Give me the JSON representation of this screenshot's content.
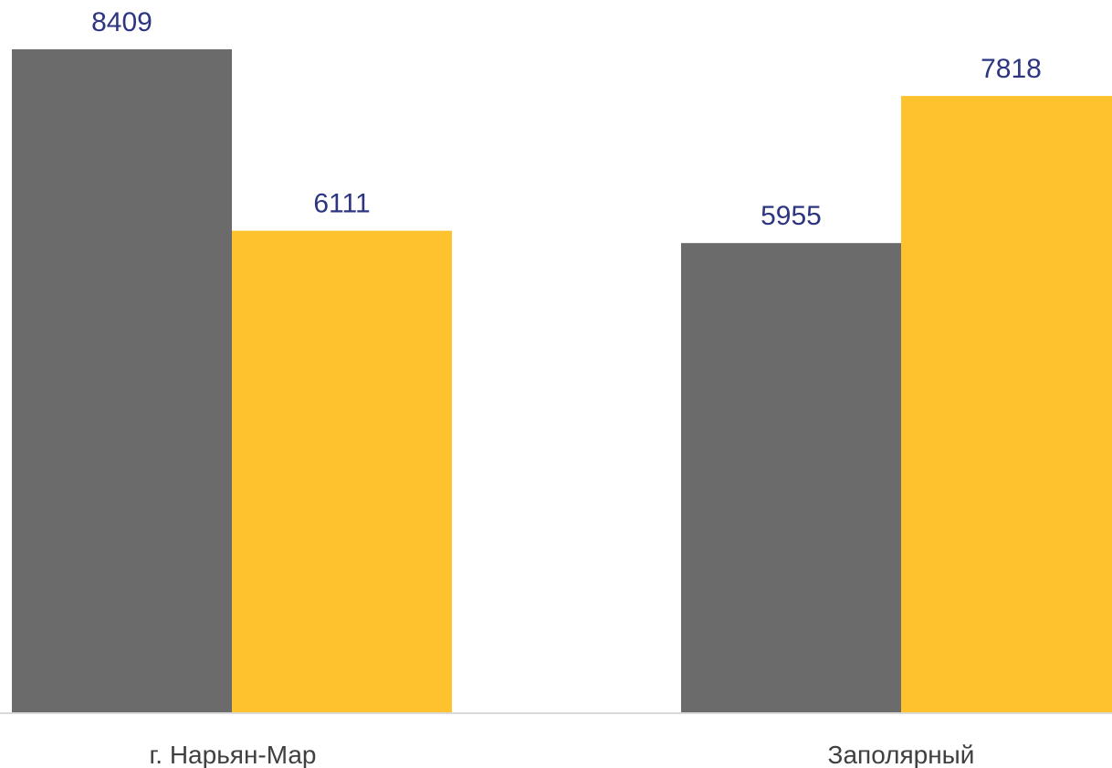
{
  "chart_data": {
    "type": "bar",
    "categories": [
      "г. Нарьян-Мар",
      "Заполярный"
    ],
    "series": [
      {
        "color": "#6b6b6b",
        "values": [
          8409,
          5955
        ]
      },
      {
        "color": "#fdc22d",
        "values": [
          6111,
          7818
        ]
      }
    ],
    "ylim": [
      0,
      8409
    ],
    "grid": false,
    "legend": "none",
    "value_label_color": "#2e3580",
    "axis_color": "#d9d9d9"
  }
}
